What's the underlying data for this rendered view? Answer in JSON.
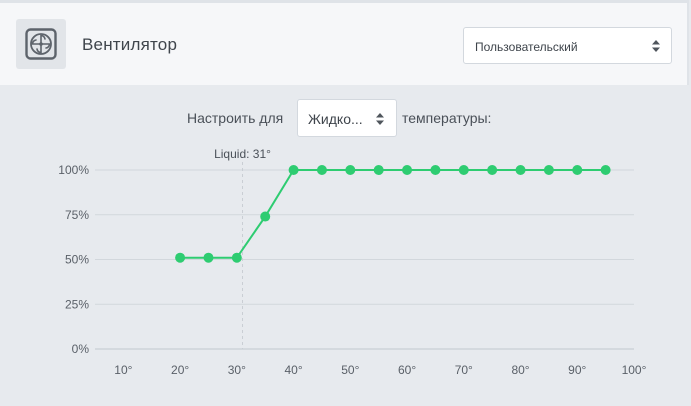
{
  "header": {
    "icon": "fan-icon",
    "title": "Вентилятор",
    "profile_select": {
      "value": "Пользовательский"
    }
  },
  "config": {
    "label_before": "Настроить для",
    "sensor_select": {
      "value": "Жидко..."
    },
    "label_after": "температуры:"
  },
  "chart_data": {
    "type": "line",
    "xlabel": "",
    "ylabel": "",
    "x_ticks": [
      "10°",
      "20°",
      "30°",
      "40°",
      "50°",
      "60°",
      "70°",
      "80°",
      "90°",
      "100°"
    ],
    "y_ticks": [
      "0%",
      "25%",
      "50%",
      "75%",
      "100%"
    ],
    "xlim": [
      5,
      100
    ],
    "ylim": [
      0,
      100
    ],
    "grid": true,
    "series": [
      {
        "color": "#2ecc71",
        "x": [
          20,
          25,
          30,
          35,
          40,
          45,
          50,
          55,
          60,
          65,
          70,
          75,
          80,
          85,
          90,
          95
        ],
        "y": [
          51,
          51,
          51,
          74,
          100,
          100,
          100,
          100,
          100,
          100,
          100,
          100,
          100,
          100,
          100,
          100
        ]
      }
    ],
    "marker": {
      "label": "Liquid: 31°",
      "x": 31
    }
  }
}
